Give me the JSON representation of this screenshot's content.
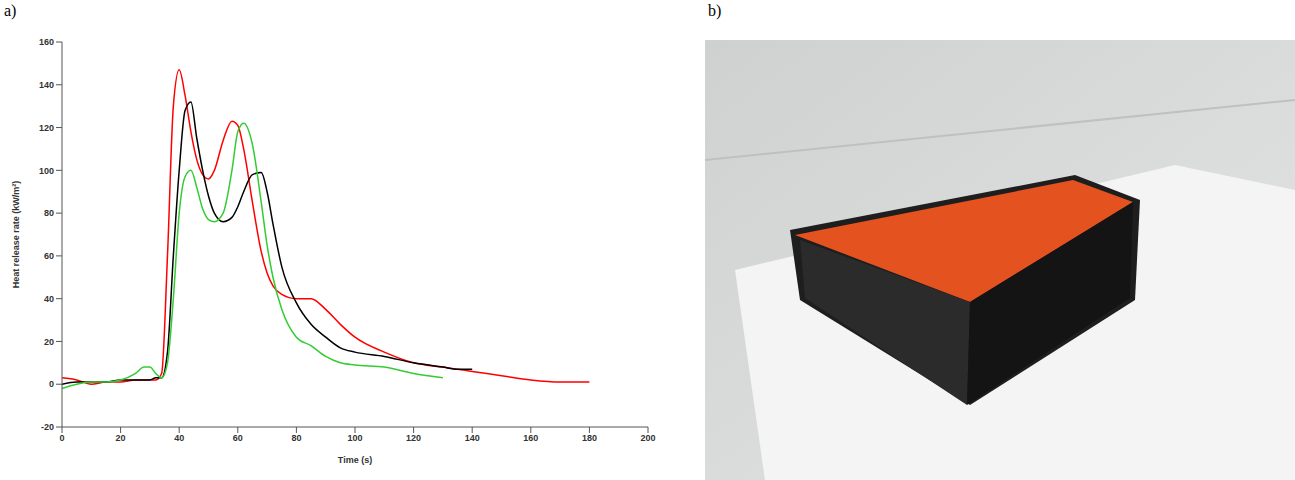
{
  "panel_labels": [
    "a)",
    "b)"
  ],
  "chart_data": {
    "type": "line",
    "x_label": "Time (s)",
    "y_label": "Heat release rate (kW/m²)",
    "x": [
      0,
      5,
      10,
      15,
      20,
      25,
      28,
      30,
      32,
      34,
      36,
      38,
      40,
      42,
      44,
      46,
      48,
      50,
      52,
      55,
      58,
      60,
      62,
      65,
      68,
      70,
      72,
      75,
      80,
      85,
      90,
      95,
      100,
      110,
      120,
      130,
      135,
      140,
      150,
      160,
      170,
      180
    ],
    "series": [
      {
        "color": "#ff0000",
        "values": [
          3,
          2,
          0,
          1,
          1,
          2,
          2,
          2,
          2,
          5,
          60,
          130,
          147,
          135,
          118,
          105,
          98,
          96,
          100,
          114,
          123,
          121,
          110,
          85,
          62,
          52,
          46,
          42,
          40,
          40,
          35,
          28,
          22,
          15,
          10,
          8,
          7,
          6,
          4,
          2,
          1,
          1
        ]
      },
      {
        "color": "#000000",
        "values": [
          0,
          1,
          1,
          1,
          2,
          2,
          2,
          2,
          3,
          3,
          15,
          60,
          100,
          128,
          132,
          115,
          100,
          88,
          80,
          76,
          78,
          83,
          90,
          98,
          99,
          90,
          75,
          55,
          38,
          28,
          22,
          17,
          15,
          13,
          10,
          8,
          7,
          7,
          null,
          null,
          null,
          null
        ]
      },
      {
        "color": "#33cc33",
        "values": [
          -2,
          0,
          1,
          1,
          2,
          5,
          8,
          8,
          5,
          3,
          10,
          40,
          80,
          97,
          100,
          92,
          82,
          77,
          76,
          80,
          100,
          118,
          122,
          112,
          85,
          65,
          50,
          35,
          22,
          18,
          13,
          10,
          9,
          8,
          5,
          3,
          null,
          null,
          null,
          null,
          null,
          null
        ]
      }
    ],
    "xlim": [
      0,
      200
    ],
    "xticks": [
      0,
      20,
      40,
      60,
      80,
      100,
      120,
      140,
      160,
      180,
      200
    ],
    "ylim": [
      -20,
      160
    ],
    "yticks": [
      -20,
      0,
      20,
      40,
      60,
      80,
      100,
      120,
      140,
      160
    ],
    "grid": false
  }
}
